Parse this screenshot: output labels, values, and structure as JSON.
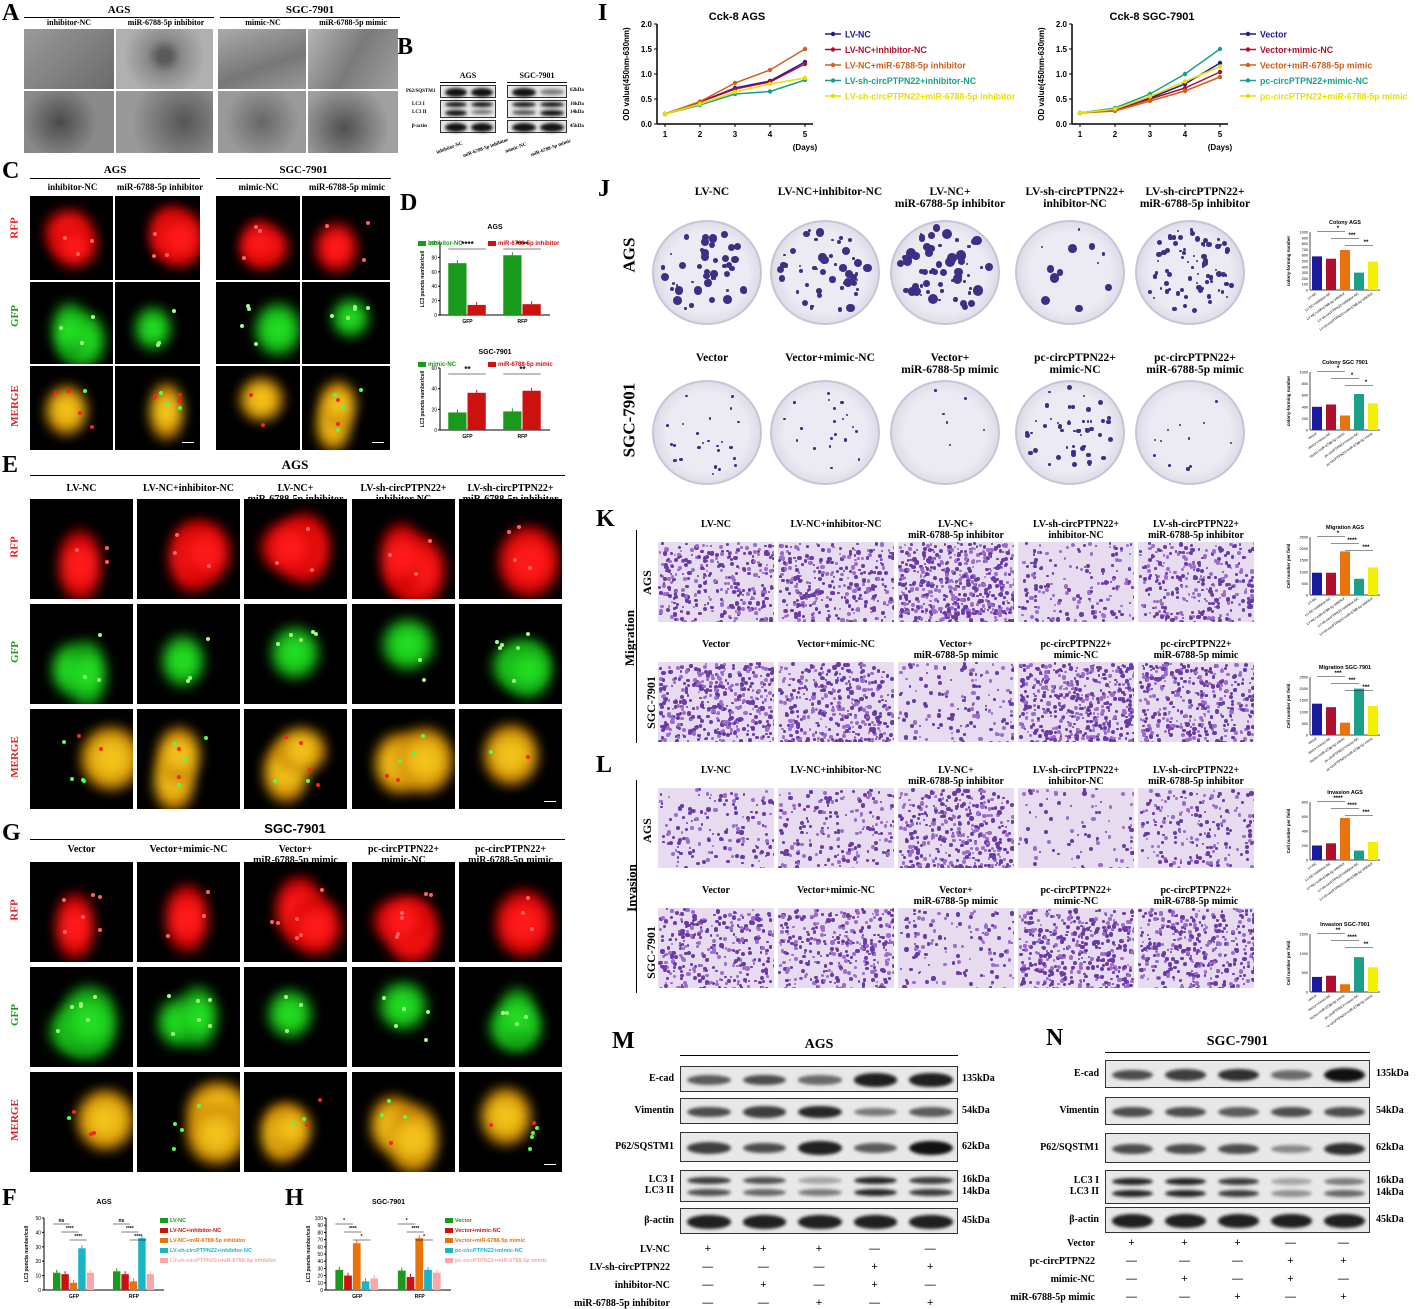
{
  "panels": {
    "A": "A",
    "B": "B",
    "C": "C",
    "D": "D",
    "E": "E",
    "F": "F",
    "G": "G",
    "H": "H",
    "I": "I",
    "J": "J",
    "K": "K",
    "L": "L",
    "M": "M",
    "N": "N"
  },
  "panelA": {
    "cell_ags": "AGS",
    "cell_sgc": "SGC-7901",
    "cols": [
      "inhibitor-NC",
      "miR-6788-5p inhibitor",
      "mimic-NC",
      "miR-6788-5p mimic"
    ]
  },
  "panelB": {
    "cell_ags": "AGS",
    "cell_sgc": "SGC-7901",
    "rows": [
      "P62/SQSTM1",
      "LC3  I",
      "LC3 II",
      "β-actin"
    ],
    "kda": [
      "62kDa",
      "16kDa",
      "14kDa",
      "45kDa"
    ],
    "lanes": [
      "inhibitor-NC",
      "miR-6788-5p inhibitor",
      "mimic-NC",
      "miR-6788-5p mimic"
    ]
  },
  "panelC": {
    "cell_ags": "AGS",
    "cell_sgc": "SGC-7901",
    "cols": [
      "inhibitor-NC",
      "miR-6788-5p inhibitor",
      "mimic-NC",
      "miR-6788-5p mimic"
    ],
    "rows": [
      "RFP",
      "GFP",
      "MERGE"
    ]
  },
  "panelE": {
    "title": "AGS",
    "cols": [
      "LV-NC",
      "LV-NC+inhibitor-NC",
      "LV-NC+\nmiR-6788-5p inhibitor",
      "LV-sh-circPTPN22+\ninhibitor-NC",
      "LV-sh-circPTPN22+\nmiR-6788-5p inhibitor"
    ],
    "rows": [
      "RFP",
      "GFP",
      "MERGE"
    ],
    "scale": "10 μM"
  },
  "panelG": {
    "title": "SGC-7901",
    "cols": [
      "Vector",
      "Vector+mimic-NC",
      "Vector+\nmiR-6788-5p mimic",
      "pc-circPTPN22+\nmimic-NC",
      "pc-circPTPN22+\nmiR-6788-5p mimic"
    ],
    "rows": [
      "RFP",
      "GFP",
      "MERGE"
    ],
    "scale": "10μM"
  },
  "panelJ": {
    "rows": [
      "AGS",
      "SGC-7901"
    ],
    "ags_cols": [
      "LV-NC",
      "LV-NC+inhibitor-NC",
      "LV-NC+\nmiR-6788-5p inhibitor",
      "LV-sh-circPTPN22+\ninhibitor-NC",
      "LV-sh-circPTPN22+\nmiR-6788-5p inhibitor"
    ],
    "sgc_cols": [
      "Vector",
      "Vector+mimic-NC",
      "Vector+\nmiR-6788-5p mimic",
      "pc-circPTPN22+\nmimic-NC",
      "pc-circPTPN22+\nmiR-6788-5p mimic"
    ]
  },
  "panelK": {
    "side": "Migration",
    "rows": [
      "AGS",
      "SGC-7901"
    ],
    "ags_cols": [
      "LV-NC",
      "LV-NC+inhibitor-NC",
      "LV-NC+\nmiR-6788-5p inhibitor",
      "LV-sh-circPTPN22+\ninhibitor-NC",
      "LV-sh-circPTPN22+\nmiR-6788-5p inhibitor"
    ],
    "sgc_cols": [
      "Vector",
      "Vector+mimic-NC",
      "Vector+\nmiR-6788-5p mimic",
      "pc-circPTPN22+\nmimic-NC",
      "pc-circPTPN22+\nmiR-6788-5p mimic"
    ]
  },
  "panelL": {
    "side": "Invasion",
    "rows": [
      "AGS",
      "SGC-7901"
    ],
    "ags_cols": [
      "LV-NC",
      "LV-NC+inhibitor-NC",
      "LV-NC+\nmiR-6788-5p inhibitor",
      "LV-sh-circPTPN22+\ninhibitor-NC",
      "LV-sh-circPTPN22+\nmiR-6788-5p inhibitor"
    ],
    "sgc_cols": [
      "Vector",
      "Vector+mimic-NC",
      "Vector+\nmiR-6788-5p mimic",
      "pc-circPTPN22+\nmimic-NC",
      "pc-circPTPN22+\nmiR-6788-5p mimic"
    ]
  },
  "panelM": {
    "title": "AGS",
    "rows": [
      "E-cad",
      "Vimentin",
      "P62/SQSTM1",
      "LC3  I\nLC3 II",
      "β-actin"
    ],
    "kda": [
      "135kDa",
      "54kDa",
      "62kDa",
      "16kDa\n14kDa",
      "45kDa"
    ],
    "treat_labels": [
      "LV-NC",
      "LV-sh-circPTPN22",
      "inhibitor-NC",
      "miR-6788-5p inhibitor"
    ],
    "treat_signs": [
      [
        "+",
        "+",
        "+",
        "—",
        "—"
      ],
      [
        "—",
        "—",
        "—",
        "+",
        "+"
      ],
      [
        "—",
        "+",
        "—",
        "+",
        "—"
      ],
      [
        "—",
        "—",
        "+",
        "—",
        "+"
      ]
    ]
  },
  "panelN": {
    "title": "SGC-7901",
    "rows": [
      "E-cad",
      "Vimentin",
      "P62/SQSTM1",
      "LC3  I\nLC3 II",
      "β-actin"
    ],
    "kda": [
      "135kDa",
      "54kDa",
      "62kDa",
      "16kDa\n14kDa",
      "45kDa"
    ],
    "treat_labels": [
      "Vector",
      "pc-circPTPN22",
      "mimic-NC",
      "miR-6788-5p mimic"
    ],
    "treat_signs": [
      [
        "+",
        "+",
        "+",
        "—",
        "—"
      ],
      [
        "—",
        "—",
        "—",
        "+",
        "+"
      ],
      [
        "—",
        "+",
        "—",
        "+",
        "—"
      ],
      [
        "—",
        "—",
        "+",
        "—",
        "+"
      ]
    ]
  },
  "chart_data": [
    {
      "id": "D1",
      "type": "bar",
      "title": "AGS",
      "ylabel": "LC3 puncta number/cell",
      "ylim": [
        0,
        100
      ],
      "yticks": [
        0,
        20,
        40,
        60,
        80,
        100
      ],
      "categories": [
        "GFP",
        "RFP"
      ],
      "series": [
        {
          "name": "inhibitor-NC",
          "color": "#1a9a1a",
          "values": [
            72,
            83
          ]
        },
        {
          "name": "miR-6788-5p inhibitor",
          "color": "#cc1111",
          "values": [
            14,
            15
          ]
        }
      ],
      "sig": [
        "****",
        "****"
      ]
    },
    {
      "id": "D2",
      "type": "bar",
      "title": "SGC-7901",
      "ylabel": "LC3 puncta number/cell",
      "ylim": [
        0,
        60
      ],
      "yticks": [
        0,
        20,
        40,
        60
      ],
      "categories": [
        "GFP",
        "RFP"
      ],
      "series": [
        {
          "name": "mimic-NC",
          "color": "#1a9a1a",
          "values": [
            17,
            18
          ]
        },
        {
          "name": "miR-6788-5p mimic",
          "color": "#cc1111",
          "values": [
            36,
            38
          ]
        }
      ],
      "sig": [
        "**",
        "**"
      ]
    },
    {
      "id": "F",
      "type": "bar",
      "title": "AGS",
      "ylabel": "LC3 puncta number/cell",
      "ylim": [
        0,
        50
      ],
      "yticks": [
        0,
        10,
        20,
        30,
        40,
        50
      ],
      "categories": [
        "GFP",
        "RFP"
      ],
      "series": [
        {
          "name": "LV-NC",
          "color": "#1a9a1a",
          "values": [
            12,
            13
          ]
        },
        {
          "name": "LV-NC+inhibitor-NC",
          "color": "#cc1111",
          "values": [
            11,
            11
          ]
        },
        {
          "name": "LV-NC+miR-6788-5p inhibitor",
          "color": "#e8720c",
          "values": [
            5,
            6
          ]
        },
        {
          "name": "LV-sh-circPTPN22+inhibitor-NC",
          "color": "#19b4c8",
          "values": [
            29,
            36
          ]
        },
        {
          "name": "LV-sh-circPTPN22+miR-6788-5p inhibitor",
          "color": "#f7a8a8",
          "values": [
            12,
            11
          ]
        }
      ],
      "sig": [
        "ns",
        "****",
        "****",
        "ns",
        "****",
        "****"
      ]
    },
    {
      "id": "H",
      "type": "bar",
      "title": "SGC-7901",
      "ylabel": "LC3 puncta number/cell",
      "ylim": [
        0,
        100
      ],
      "yticks": [
        0,
        10,
        20,
        30,
        40,
        50,
        60,
        70,
        80,
        90,
        100
      ],
      "categories": [
        "GFP",
        "RFP"
      ],
      "series": [
        {
          "name": "Vector",
          "color": "#1a9a1a",
          "values": [
            28,
            27
          ]
        },
        {
          "name": "Vector+mimic-NC",
          "color": "#cc1111",
          "values": [
            20,
            18
          ]
        },
        {
          "name": "Vector+miR-6788-5p mimic",
          "color": "#e8720c",
          "values": [
            65,
            72
          ]
        },
        {
          "name": "pc-circPTPN22+mimic-NC",
          "color": "#19b4c8",
          "values": [
            12,
            28
          ]
        },
        {
          "name": "pc-circPTPN22+miR-6788-5p mimic",
          "color": "#f7a8a8",
          "values": [
            16,
            24
          ]
        }
      ],
      "sig": [
        "*",
        "****",
        "*",
        "*",
        "****",
        "*"
      ]
    },
    {
      "id": "I1",
      "type": "line",
      "title": "Cck-8 AGS",
      "xlabel": "(Days)",
      "ylabel": "OD value(450nm-630nm)",
      "x": [
        1,
        2,
        3,
        4,
        5
      ],
      "ylim": [
        0,
        2.0
      ],
      "yticks": [
        0.0,
        0.5,
        1.0,
        1.5,
        2.0
      ],
      "series": [
        {
          "name": "LV-NC",
          "color": "#1a1aa0",
          "marker": "circle",
          "values": [
            0.2,
            0.44,
            0.72,
            0.86,
            1.24
          ]
        },
        {
          "name": "LV-NC+inhibitor-NC",
          "color": "#b01030",
          "marker": "square",
          "values": [
            0.2,
            0.44,
            0.7,
            0.84,
            1.2
          ]
        },
        {
          "name": "LV-NC+miR-6788-5p inhibitor",
          "color": "#d0601a",
          "marker": "triangle",
          "values": [
            0.2,
            0.45,
            0.82,
            1.08,
            1.5
          ]
        },
        {
          "name": "LV-sh-circPTPN22+inhibitor-NC",
          "color": "#1aa088",
          "marker": "triangle-down",
          "values": [
            0.2,
            0.38,
            0.6,
            0.65,
            0.88
          ]
        },
        {
          "name": "LV-sh-circPTPN22+miR-6788-5p inhibitor",
          "color": "#e8e000",
          "marker": "diamond",
          "values": [
            0.2,
            0.4,
            0.64,
            0.8,
            0.92
          ]
        }
      ]
    },
    {
      "id": "I2",
      "type": "line",
      "title": "Cck-8 SGC-7901",
      "xlabel": "(Days)",
      "ylabel": "OD value(450nm-630nm)",
      "x": [
        1,
        2,
        3,
        4,
        5
      ],
      "ylim": [
        0,
        2.0
      ],
      "yticks": [
        0.0,
        0.5,
        1.0,
        1.5,
        2.0
      ],
      "series": [
        {
          "name": "Vector",
          "color": "#1a1aa0",
          "marker": "circle",
          "values": [
            0.22,
            0.3,
            0.52,
            0.8,
            1.22
          ]
        },
        {
          "name": "Vector+mimic-NC",
          "color": "#b01030",
          "marker": "square",
          "values": [
            0.22,
            0.28,
            0.5,
            0.72,
            1.04
          ]
        },
        {
          "name": "Vector+miR-6788-5p mimic",
          "color": "#d0601a",
          "marker": "triangle",
          "values": [
            0.22,
            0.26,
            0.46,
            0.66,
            0.94
          ]
        },
        {
          "name": "pc-circPTPN22+mimic-NC",
          "color": "#1aa088",
          "marker": "triangle-down",
          "values": [
            0.22,
            0.32,
            0.6,
            1.0,
            1.5
          ]
        },
        {
          "name": "pc-circPTPN22+miR-6788-5p mimic",
          "color": "#e8e000",
          "marker": "diamond",
          "values": [
            0.22,
            0.3,
            0.55,
            0.85,
            1.15
          ]
        }
      ]
    },
    {
      "id": "J1",
      "type": "bar",
      "title": "Colony AGS",
      "ylabel": "colony-forming number",
      "ylim": [
        0,
        1000
      ],
      "yticks": [
        0,
        100,
        200,
        300,
        400,
        500,
        600,
        700,
        800,
        900,
        1000
      ],
      "categories": [
        "LV-NC",
        "LV-NC+inhibitor-NC",
        "LV-NC+miR-6788-5p inhibitor",
        "LV-sh-circPTPN22+inhibitor-NC",
        "LV-sh-circPTPN22+miR-6788-5p inhibitor"
      ],
      "colors": [
        "#1a1aa0",
        "#b01030",
        "#e8720c",
        "#1aa088",
        "#f5f000"
      ],
      "values": [
        580,
        540,
        690,
        300,
        490
      ],
      "sig": [
        "*",
        "***",
        "**"
      ]
    },
    {
      "id": "J2",
      "type": "bar",
      "title": "Colony SGC 7901",
      "ylabel": "colony-forming number",
      "ylim": [
        0,
        1000
      ],
      "yticks": [
        0,
        200,
        400,
        600,
        800,
        1000
      ],
      "categories": [
        "Vector",
        "Vector+mimic-NC",
        "Vector+miR-6788-5p mimic",
        "pc-circPTPN22+mimic-NC",
        "pc-circPTPN22+miR-6788-5p mimic"
      ],
      "colors": [
        "#1a1aa0",
        "#b01030",
        "#e8720c",
        "#1aa088",
        "#f5f000"
      ],
      "values": [
        400,
        440,
        250,
        620,
        460
      ],
      "sig": [
        "*",
        "*",
        "*"
      ]
    },
    {
      "id": "K1",
      "type": "bar",
      "title": "Migration AGS",
      "ylabel": "Cell number per field",
      "ylim": [
        0,
        2500
      ],
      "yticks": [
        0,
        500,
        1000,
        1500,
        2000,
        2500
      ],
      "categories": [
        "LV-NC",
        "LV-NC+inhibitor-NC",
        "LV-NC+miR-6788-5p inhibitor",
        "LV-sh-circPTPN22+inhibitor-NC",
        "LV-sh-circPTPN22+miR-6788-5p inhibitor"
      ],
      "colors": [
        "#1a1aa0",
        "#b01030",
        "#e8720c",
        "#1aa088",
        "#f5f000"
      ],
      "values": [
        960,
        960,
        1880,
        700,
        1190
      ],
      "sig": [
        "*",
        "****",
        "***"
      ]
    },
    {
      "id": "K2",
      "type": "bar",
      "title": "Migration SGC-7901",
      "ylabel": "Cell number per field",
      "ylim": [
        0,
        2500
      ],
      "yticks": [
        0,
        500,
        1000,
        1500,
        2000,
        2500
      ],
      "categories": [
        "Vector",
        "Vector+mimic-NC",
        "Vector+miR-6788-5p mimic",
        "pc-circPTPN22+mimic-NC",
        "pc-circPTPN22+miR-6788-5p mimic"
      ],
      "colors": [
        "#1a1aa0",
        "#b01030",
        "#e8720c",
        "#1aa088",
        "#f5f000"
      ],
      "values": [
        1350,
        1200,
        530,
        2000,
        1250
      ],
      "sig": [
        "***",
        "***",
        "***"
      ]
    },
    {
      "id": "L1",
      "type": "bar",
      "title": "Invasion AGS",
      "ylabel": "Cell number per field",
      "ylim": [
        0,
        800
      ],
      "yticks": [
        0,
        200,
        400,
        600,
        800
      ],
      "categories": [
        "LV-NC",
        "LV-NC+inhibitor-NC",
        "LV-NC+miR-6788-5p inhibitor",
        "LV-sh-circPTPN22+inhibitor-NC",
        "LV-sh-circPTPN22+miR-6788-5p inhibitor"
      ],
      "colors": [
        "#1a1aa0",
        "#b01030",
        "#e8720c",
        "#1aa088",
        "#f5f000"
      ],
      "values": [
        200,
        230,
        580,
        130,
        250
      ],
      "sig": [
        "****",
        "****",
        "***"
      ]
    },
    {
      "id": "L2",
      "type": "bar",
      "title": "Invasion SGC-7901",
      "ylabel": "Cell number per field",
      "ylim": [
        0,
        1500
      ],
      "yticks": [
        0,
        500,
        1000,
        1500
      ],
      "categories": [
        "Vector",
        "Vector+mimic-NC",
        "Vector+miR-6788-5p mimic",
        "pc-circPTPN22+mimic-NC",
        "pc-circPTPN22+miR-6788-5p mimic"
      ],
      "colors": [
        "#1a1aa0",
        "#b01030",
        "#e8720c",
        "#1aa088",
        "#f5f000"
      ],
      "values": [
        390,
        420,
        200,
        900,
        640
      ],
      "sig": [
        "**",
        "****",
        "**"
      ]
    }
  ]
}
